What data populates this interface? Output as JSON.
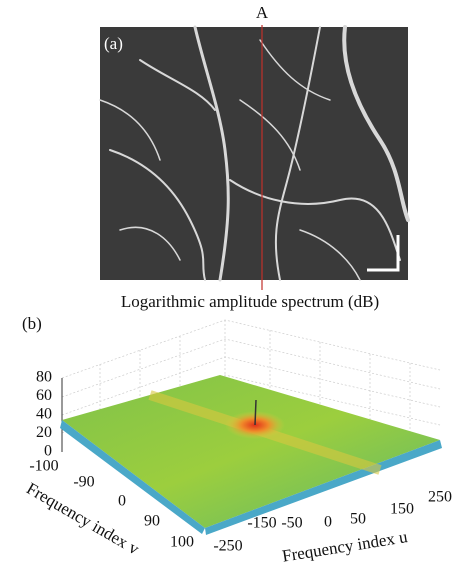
{
  "panel_a": {
    "marker": "A",
    "label": "(a)"
  },
  "panel_b": {
    "label": "(b)",
    "title": "Logarithmic amplitude spectrum (dB)",
    "z_ticks": [
      80,
      60,
      40,
      20,
      0
    ],
    "v_ticks": [
      -100,
      -90,
      0,
      90,
      100
    ],
    "u_ticks": [
      -250,
      -150,
      -50,
      0,
      50,
      150,
      250
    ],
    "v_label": "Frequency index v",
    "u_label": "Frequency index u"
  }
}
